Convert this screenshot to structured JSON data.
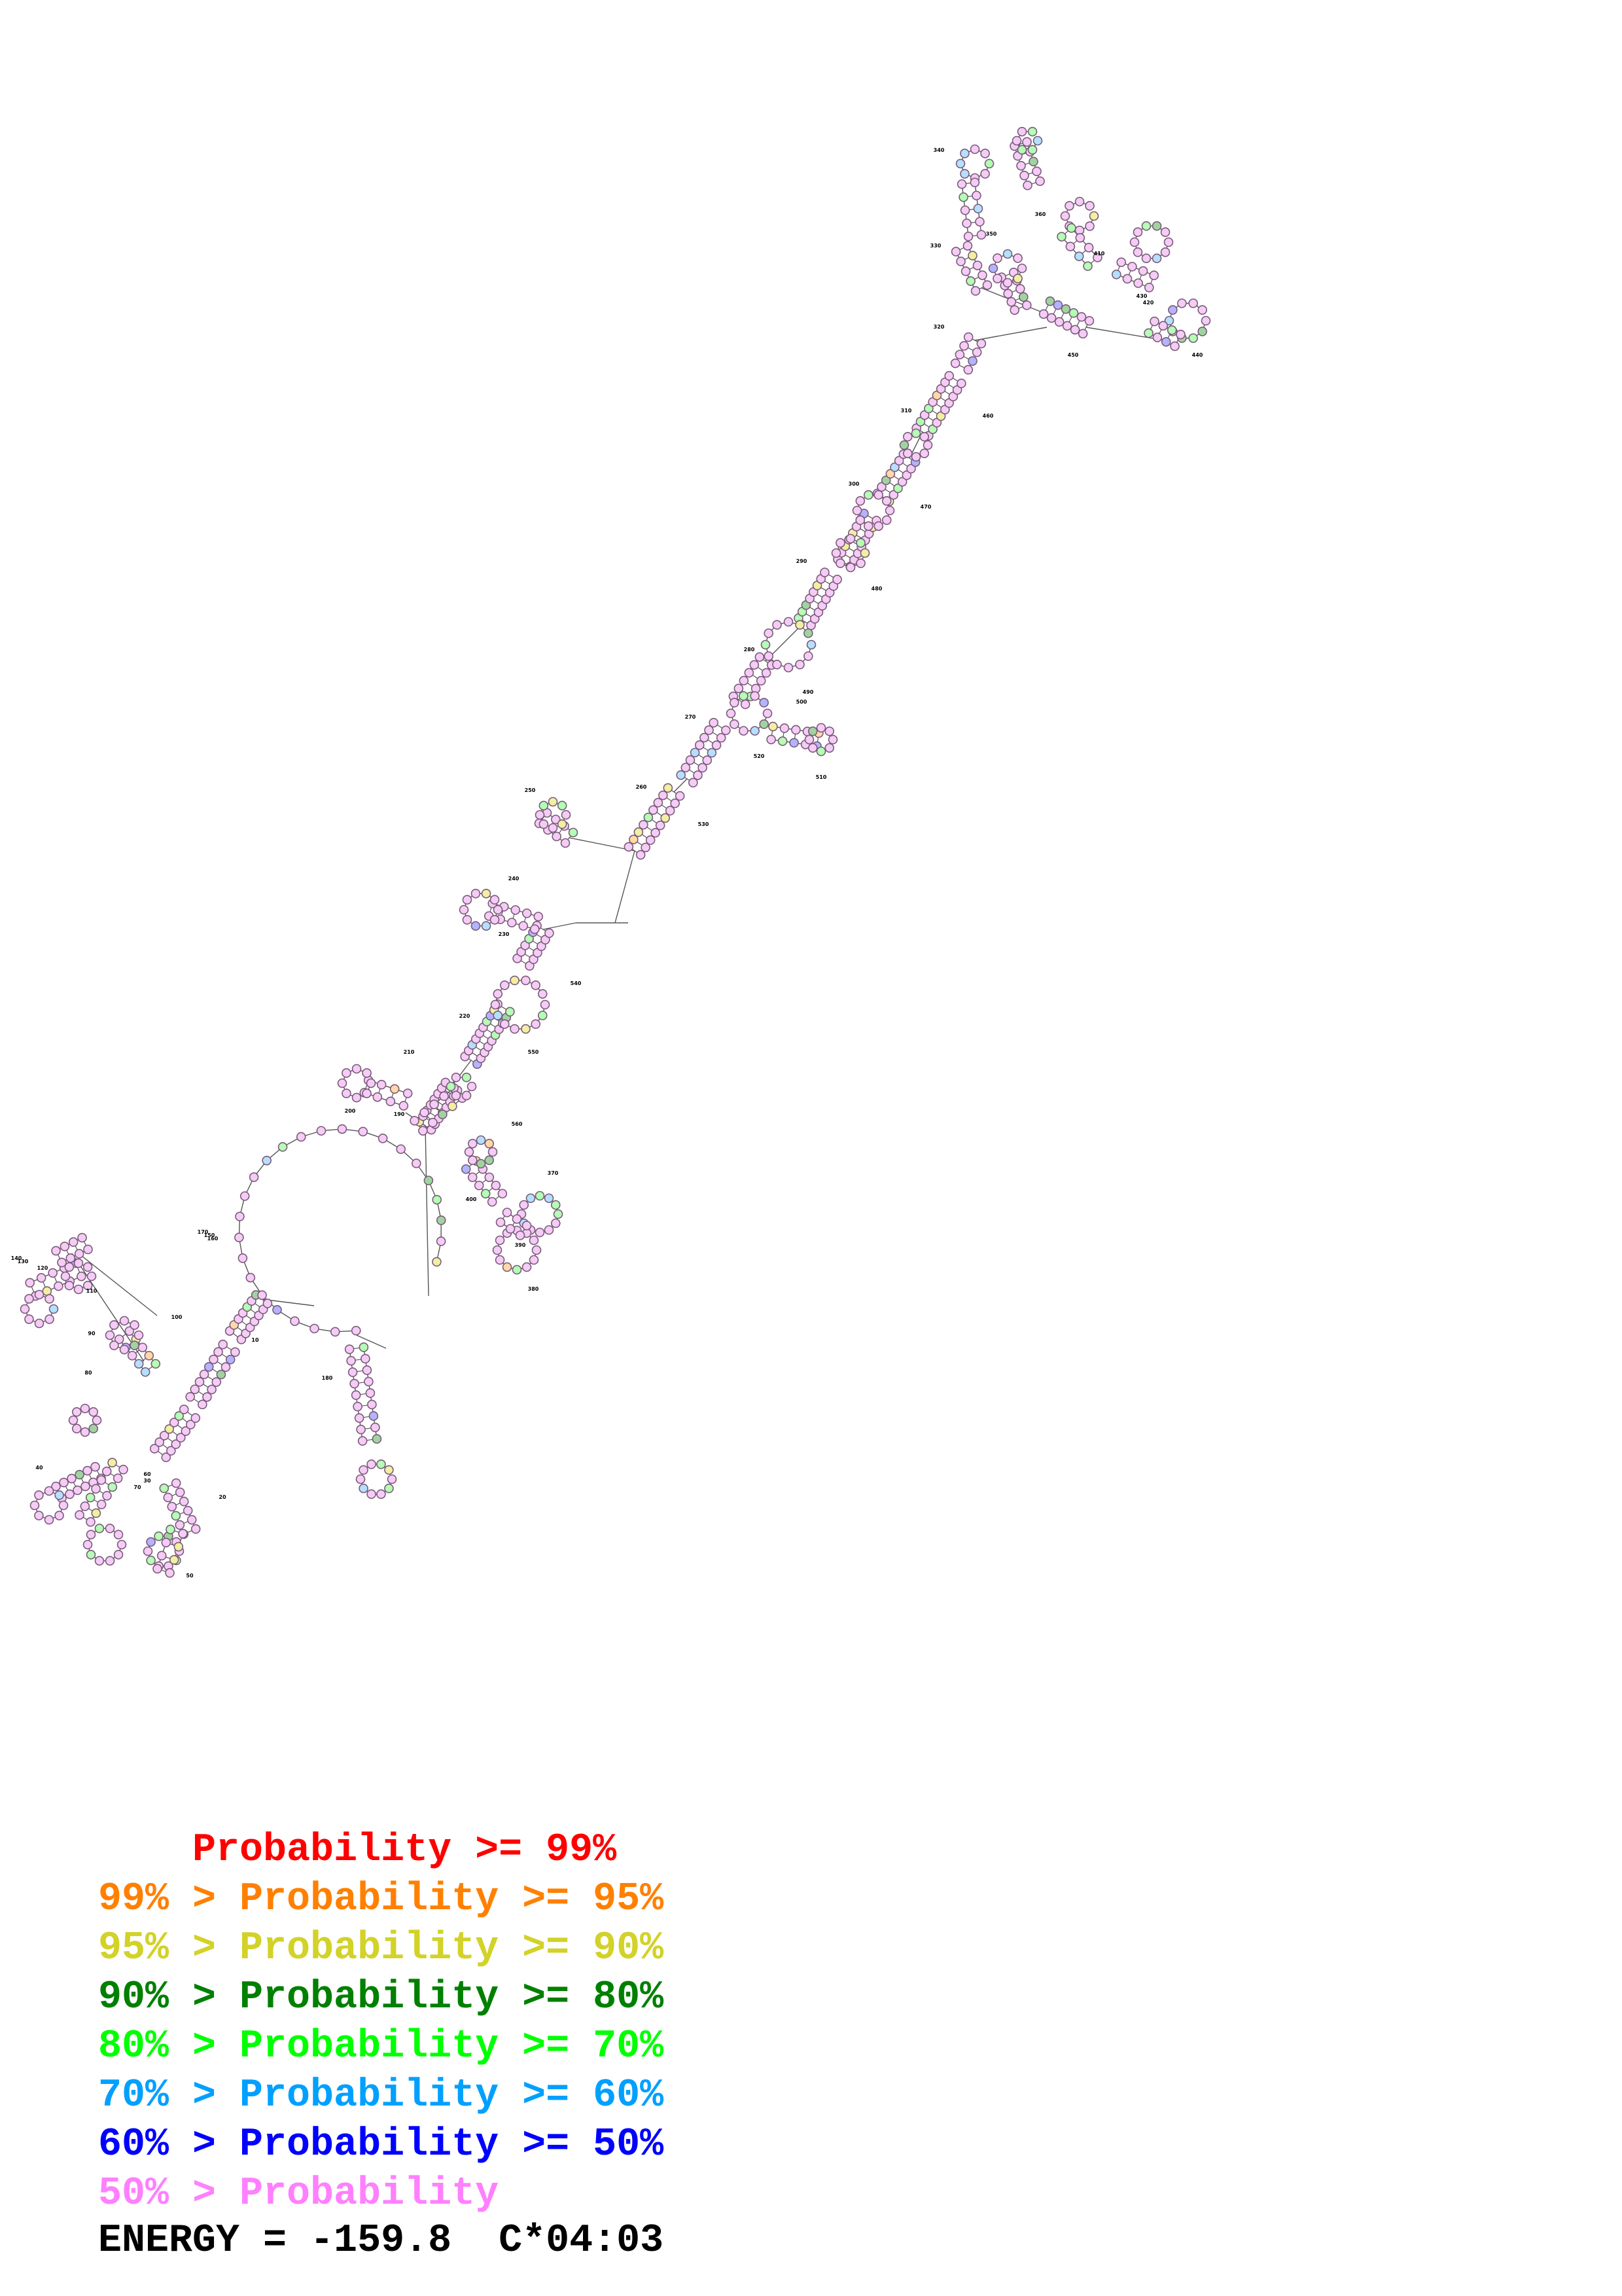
{
  "legend": [
    {
      "prefix": "    ",
      "text": "Probability >= 99%",
      "color": "#ff0000"
    },
    {
      "prefix": "",
      "text": "99% > Probability >= 95%",
      "color": "#ff8000"
    },
    {
      "prefix": "",
      "text": "95% > Probability >= 90%",
      "color": "#d2d228"
    },
    {
      "prefix": "",
      "text": "90% > Probability >= 80%",
      "color": "#008000"
    },
    {
      "prefix": "",
      "text": "80% > Probability >= 70%",
      "color": "#00ff00"
    },
    {
      "prefix": "",
      "text": "70% > Probability >= 60%",
      "color": "#00a0ff"
    },
    {
      "prefix": "",
      "text": "60% > Probability >= 50%",
      "color": "#0000ff"
    },
    {
      "prefix": "",
      "text": "50% > Probability",
      "color": "#ff80ff"
    }
  ],
  "energy_text": "ENERGY = -159.8  C*04:03",
  "position_labels": [
    "10",
    "20",
    "30",
    "40",
    "50",
    "60",
    "70",
    "80",
    "90",
    "100",
    "110",
    "120",
    "130",
    "140",
    "150",
    "160",
    "170",
    "180",
    "190",
    "200",
    "210",
    "220",
    "230",
    "240",
    "250",
    "260",
    "270",
    "280",
    "290",
    "300",
    "310",
    "320",
    "330",
    "340",
    "350",
    "360",
    "370",
    "380",
    "390",
    "400",
    "410",
    "420",
    "430",
    "440",
    "450",
    "460",
    "470",
    "480",
    "490",
    "500",
    "510",
    "520",
    "530",
    "540",
    "550",
    "560"
  ]
}
